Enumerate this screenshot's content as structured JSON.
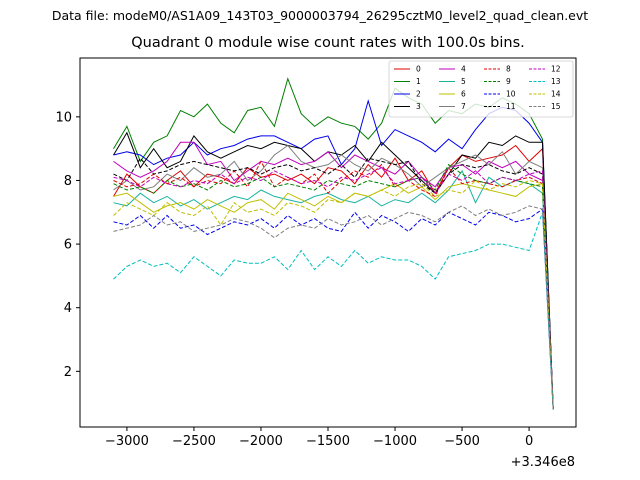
{
  "figure": {
    "suptitle": "Data file: modeM0/AS1A09_143T03_9000003794_26295cztM0_level2_quad_clean.evt"
  },
  "chart_data": {
    "type": "line",
    "title": "Quadrant 0 module wise count rates with 100.0s bins.",
    "xlabel": "",
    "ylabel": "",
    "x_offset_label": "+3.346e8",
    "xlim": [
      -3350,
      350
    ],
    "ylim": [
      0.25,
      11.85
    ],
    "xticks": [
      -3000,
      -2500,
      -2000,
      -1500,
      -1000,
      -500,
      0
    ],
    "xtick_labels": [
      "−3000",
      "−2500",
      "−2000",
      "−1500",
      "−1000",
      "−500",
      "0"
    ],
    "yticks": [
      2,
      4,
      6,
      8,
      10
    ],
    "ytick_labels": [
      "2",
      "4",
      "6",
      "8",
      "10"
    ],
    "legend_position": "top-right",
    "legend_columns": 4,
    "x": [
      -3100,
      -3000,
      -2900,
      -2800,
      -2700,
      -2600,
      -2500,
      -2400,
      -2300,
      -2200,
      -2100,
      -2000,
      -1900,
      -1800,
      -1700,
      -1600,
      -1500,
      -1400,
      -1300,
      -1200,
      -1100,
      -1000,
      -900,
      -800,
      -700,
      -600,
      -500,
      -400,
      -300,
      -200,
      -100,
      0,
      100,
      180
    ],
    "series": [
      {
        "name": "0",
        "color": "#e00000",
        "style": "solid",
        "values": [
          7.5,
          8.2,
          7.8,
          7.6,
          8.0,
          8.3,
          7.8,
          8.2,
          8.1,
          7.9,
          8.4,
          8.1,
          8.2,
          8.0,
          8.2,
          7.9,
          8.4,
          8.3,
          7.9,
          8.5,
          8.1,
          8.7,
          8.0,
          8.3,
          7.6,
          8.4,
          8.8,
          8.6,
          8.7,
          8.8,
          9.1,
          8.6,
          9.0,
          0.8
        ]
      },
      {
        "name": "1",
        "color": "#007f00",
        "style": "solid",
        "values": [
          9.0,
          9.7,
          8.6,
          9.2,
          9.4,
          10.2,
          10.0,
          10.4,
          9.8,
          9.5,
          10.2,
          10.3,
          9.7,
          11.2,
          10.1,
          9.7,
          10.0,
          9.8,
          9.7,
          9.3,
          9.8,
          10.9,
          10.6,
          10.4,
          9.8,
          10.2,
          10.1,
          10.4,
          10.3,
          10.6,
          10.4,
          10.1,
          9.3,
          0.8
        ]
      },
      {
        "name": "2",
        "color": "#0000ee",
        "style": "solid",
        "values": [
          8.8,
          8.9,
          8.8,
          8.5,
          8.7,
          8.8,
          9.2,
          8.8,
          9.0,
          9.1,
          9.3,
          9.4,
          9.4,
          9.2,
          9.0,
          9.3,
          9.4,
          8.5,
          9.0,
          10.5,
          9.1,
          9.6,
          9.4,
          9.2,
          8.9,
          9.3,
          9.0,
          9.6,
          10.1,
          10.3,
          10.2,
          9.8,
          9.2,
          0.8
        ]
      },
      {
        "name": "3",
        "color": "#000000",
        "style": "solid",
        "values": [
          8.8,
          9.5,
          8.4,
          9.0,
          8.4,
          8.6,
          9.4,
          8.9,
          8.7,
          8.9,
          9.1,
          9.0,
          9.2,
          9.1,
          9.0,
          8.6,
          8.9,
          8.8,
          9.1,
          8.6,
          9.2,
          8.8,
          8.4,
          8.0,
          7.6,
          8.2,
          8.8,
          8.7,
          9.2,
          9.1,
          9.4,
          9.2,
          9.2,
          0.8
        ]
      },
      {
        "name": "4",
        "color": "#bf00bf",
        "style": "solid",
        "values": [
          8.6,
          8.3,
          8.1,
          8.3,
          8.6,
          9.2,
          9.2,
          8.5,
          8.6,
          8.0,
          8.3,
          8.6,
          8.5,
          8.7,
          8.5,
          8.6,
          8.9,
          8.4,
          8.8,
          8.6,
          8.4,
          8.2,
          8.6,
          8.1,
          7.8,
          8.4,
          8.5,
          8.2,
          8.6,
          8.4,
          8.6,
          8.2,
          8.0,
          0.8
        ]
      },
      {
        "name": "5",
        "color": "#1ab3a0",
        "style": "solid",
        "values": [
          7.3,
          7.2,
          7.6,
          7.3,
          7.5,
          7.2,
          7.4,
          7.1,
          7.3,
          7.5,
          7.4,
          7.7,
          7.5,
          7.4,
          7.3,
          7.5,
          7.6,
          7.4,
          7.3,
          7.5,
          7.2,
          7.4,
          7.3,
          7.6,
          7.3,
          7.7,
          8.3,
          7.3,
          8.1,
          7.8,
          8.0,
          7.9,
          7.6,
          0.8
        ]
      },
      {
        "name": "6",
        "color": "#bfbf00",
        "style": "solid",
        "values": [
          7.5,
          7.6,
          7.3,
          7.0,
          7.2,
          7.3,
          7.1,
          7.4,
          7.2,
          7.0,
          7.3,
          7.4,
          7.1,
          7.6,
          7.4,
          7.2,
          7.5,
          7.3,
          7.6,
          7.5,
          7.7,
          7.9,
          7.6,
          7.8,
          7.4,
          7.8,
          7.9,
          7.8,
          7.7,
          7.6,
          7.5,
          7.8,
          7.9,
          0.8
        ]
      },
      {
        "name": "7",
        "color": "#7f7f7f",
        "style": "solid",
        "values": [
          7.7,
          8.0,
          7.7,
          7.8,
          8.2,
          8.0,
          8.4,
          8.1,
          8.2,
          8.6,
          8.0,
          8.3,
          8.8,
          9.1,
          8.6,
          8.4,
          8.5,
          8.8,
          8.5,
          8.3,
          8.7,
          8.5,
          8.2,
          7.8,
          8.1,
          8.4,
          8.6,
          8.8,
          8.5,
          8.9,
          8.2,
          8.6,
          8.4,
          0.8
        ]
      },
      {
        "name": "8",
        "color": "#e00000",
        "style": "dashed",
        "values": [
          8.0,
          7.8,
          7.9,
          8.2,
          7.9,
          8.1,
          7.8,
          8.0,
          7.9,
          8.3,
          7.8,
          8.6,
          7.8,
          8.1,
          7.9,
          8.2,
          7.6,
          8.0,
          8.3,
          8.1,
          8.5,
          7.8,
          8.0,
          7.7,
          7.5,
          8.4,
          7.9,
          8.0,
          7.9,
          7.8,
          8.0,
          8.1,
          7.9,
          0.8
        ]
      },
      {
        "name": "9",
        "color": "#007f00",
        "style": "dashed",
        "values": [
          7.9,
          7.7,
          7.8,
          7.6,
          8.0,
          7.8,
          7.9,
          7.7,
          8.0,
          7.8,
          7.9,
          8.1,
          7.8,
          7.9,
          7.8,
          7.7,
          8.0,
          7.9,
          7.8,
          8.0,
          7.9,
          7.8,
          8.0,
          8.1,
          7.7,
          8.5,
          8.2,
          8.0,
          7.9,
          8.1,
          8.0,
          7.9,
          7.8,
          0.8
        ]
      },
      {
        "name": "10",
        "color": "#0000ee",
        "style": "dashed",
        "values": [
          6.7,
          6.6,
          6.9,
          6.5,
          6.9,
          6.5,
          6.6,
          6.3,
          6.5,
          6.7,
          6.6,
          6.8,
          6.5,
          6.9,
          6.6,
          6.8,
          6.5,
          6.4,
          7.0,
          6.5,
          6.9,
          6.7,
          6.4,
          6.8,
          6.6,
          7.0,
          6.8,
          6.6,
          7.0,
          6.9,
          6.7,
          6.8,
          7.1,
          0.8
        ]
      },
      {
        "name": "11",
        "color": "#000000",
        "style": "dashed",
        "values": [
          8.2,
          8.0,
          8.7,
          8.2,
          8.3,
          8.5,
          8.6,
          8.5,
          8.4,
          8.3,
          8.4,
          8.2,
          8.4,
          8.5,
          8.3,
          8.4,
          8.2,
          8.5,
          8.1,
          8.7,
          8.6,
          8.5,
          8.6,
          7.9,
          7.6,
          8.2,
          8.5,
          8.4,
          8.5,
          8.3,
          8.2,
          8.4,
          8.2,
          0.8
        ]
      },
      {
        "name": "12",
        "color": "#bf00bf",
        "style": "dashed",
        "values": [
          8.1,
          8.0,
          7.8,
          8.1,
          7.9,
          7.8,
          8.0,
          7.9,
          8.2,
          7.9,
          8.1,
          8.0,
          8.3,
          8.1,
          7.9,
          8.0,
          7.8,
          8.1,
          8.0,
          8.2,
          8.4,
          7.9,
          8.0,
          8.1,
          7.6,
          8.2,
          8.0,
          8.3,
          7.9,
          8.1,
          8.0,
          8.2,
          8.3,
          0.8
        ]
      },
      {
        "name": "13",
        "color": "#00bfbf",
        "style": "dashed",
        "values": [
          4.9,
          5.3,
          5.5,
          5.3,
          5.4,
          5.1,
          5.6,
          5.3,
          5.0,
          5.5,
          5.4,
          5.4,
          5.6,
          5.2,
          5.8,
          5.2,
          5.6,
          5.3,
          5.8,
          5.4,
          5.6,
          5.5,
          5.5,
          5.3,
          4.9,
          5.6,
          5.7,
          5.8,
          6.0,
          6.0,
          5.9,
          5.8,
          7.0,
          0.8
        ]
      },
      {
        "name": "14",
        "color": "#bfbf00",
        "style": "dashed",
        "values": [
          6.9,
          7.3,
          7.1,
          6.9,
          7.3,
          7.0,
          6.9,
          7.2,
          6.6,
          7.3,
          7.0,
          7.1,
          6.9,
          7.3,
          7.2,
          7.0,
          7.4,
          7.3,
          7.6,
          7.5,
          7.7,
          7.5,
          7.8,
          7.9,
          7.5,
          7.7,
          7.6,
          8.0,
          7.7,
          7.9,
          7.8,
          8.0,
          7.9,
          0.8
        ]
      },
      {
        "name": "15",
        "color": "#7f7f7f",
        "style": "dashed",
        "values": [
          6.4,
          6.5,
          6.6,
          6.9,
          6.6,
          6.7,
          6.4,
          6.5,
          6.6,
          6.8,
          6.7,
          6.5,
          6.2,
          6.5,
          6.6,
          6.5,
          6.8,
          6.6,
          6.7,
          6.9,
          6.6,
          6.8,
          7.0,
          6.9,
          6.7,
          7.0,
          7.2,
          6.9,
          7.1,
          6.9,
          7.0,
          7.2,
          7.1,
          0.8
        ]
      }
    ]
  }
}
